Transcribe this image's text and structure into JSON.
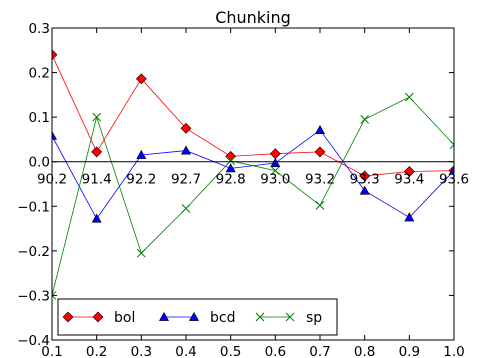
{
  "chart_data": {
    "type": "line",
    "title": "Chunking",
    "xlabel": "",
    "ylabel": "",
    "x": [
      0.1,
      0.2,
      0.3,
      0.4,
      0.5,
      0.6,
      0.7,
      0.8,
      0.9,
      1.0
    ],
    "x_ticks": [
      "0.1",
      "0.2",
      "0.3",
      "0.4",
      "0.5",
      "0.6",
      "0.7",
      "0.8",
      "0.9",
      "1.0"
    ],
    "xlim": [
      0.1,
      1.0
    ],
    "ylim": [
      -0.4,
      0.3
    ],
    "y_ticks": [
      "0.3",
      "0.2",
      "0.1",
      "0.0",
      "−0.1",
      "−0.2",
      "−0.3",
      "−0.4"
    ],
    "y_tick_values": [
      0.3,
      0.2,
      0.1,
      0.0,
      -0.1,
      -0.2,
      -0.3,
      -0.4
    ],
    "zero_line_labels": [
      "90.2",
      "91.4",
      "92.2",
      "92.7",
      "92.8",
      "93.0",
      "93.2",
      "93.3",
      "93.4",
      "93.6"
    ],
    "grid": false,
    "legend_position": "lower-left",
    "series": [
      {
        "name": "bol",
        "color": "#ff0000",
        "marker": "diamond",
        "values": [
          0.24,
          0.022,
          0.186,
          0.075,
          0.012,
          0.018,
          0.022,
          -0.032,
          -0.022,
          -0.02
        ]
      },
      {
        "name": "bcd",
        "color": "#0000ff",
        "marker": "triangle",
        "values": [
          0.058,
          -0.128,
          0.015,
          0.025,
          -0.015,
          -0.003,
          0.071,
          -0.065,
          -0.125,
          -0.02
        ]
      },
      {
        "name": "sp",
        "color": "#008000",
        "marker": "x",
        "values": [
          -0.3,
          0.1,
          -0.205,
          -0.105,
          0.002,
          -0.02,
          -0.098,
          0.095,
          0.145,
          0.038
        ]
      }
    ]
  }
}
